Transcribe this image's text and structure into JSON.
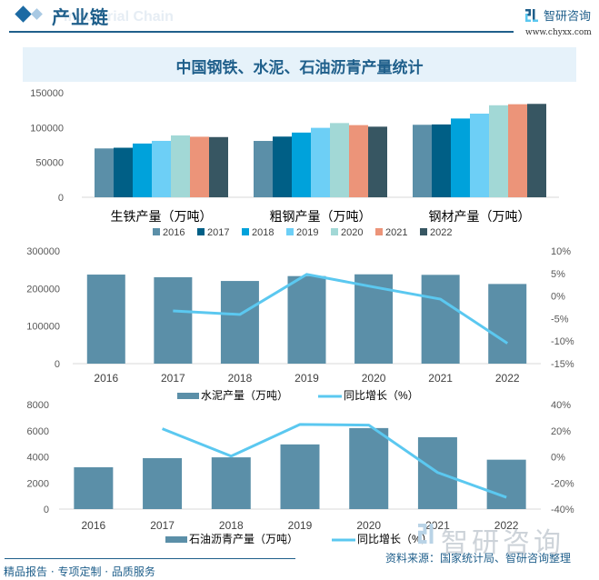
{
  "header": {
    "section_title": "产业链",
    "section_watermark": "Industrial Chain",
    "brand_name": "智研咨询",
    "brand_url": "www.chyxx.com"
  },
  "title": "中国钢铁、水泥、石油沥青产量统计",
  "footer": {
    "left": "精品报告 · 专项定制 · 品质服务",
    "right": "资料来源：国家统计局、智研咨询整理",
    "watermark": "智研咨询"
  },
  "colors": {
    "brand": "#1f5f8b",
    "bar_main": "#5b8fa8",
    "line": "#5bc8f0",
    "years": [
      "#5b8fa8",
      "#005f86",
      "#00a2db",
      "#6dcff6",
      "#a2d8d6",
      "#ec9479",
      "#375662"
    ]
  },
  "chart_data": [
    {
      "type": "bar",
      "title": "",
      "categories": [
        "生铁产量（万吨）",
        "粗钢产量（万吨）",
        "钢材产量（万吨）"
      ],
      "series": [
        {
          "name": "2016",
          "values": [
            70074,
            80837,
            104000
          ]
        },
        {
          "name": "2017",
          "values": [
            71076,
            87074,
            104500
          ]
        },
        {
          "name": "2018",
          "values": [
            77105,
            92826,
            113000
          ]
        },
        {
          "name": "2019",
          "values": [
            80937,
            99634,
            120000
          ]
        },
        {
          "name": "2020",
          "values": [
            88752,
            106477,
            132000
          ]
        },
        {
          "name": "2021",
          "values": [
            86857,
            103524,
            133500
          ]
        },
        {
          "name": "2022",
          "values": [
            86383,
            101300,
            134000
          ]
        }
      ],
      "ylim": [
        0,
        150000
      ],
      "yticks": [
        "0",
        "50000",
        "100000",
        "150000"
      ],
      "legend": "bottom",
      "grid": false
    },
    {
      "type": "bar+line",
      "categories": [
        "2016",
        "2017",
        "2018",
        "2019",
        "2020",
        "2021",
        "2022"
      ],
      "bar_series": {
        "name": "水泥产量（万吨）",
        "values": [
          237000,
          230000,
          220000,
          233000,
          237700,
          236300,
          212000
        ]
      },
      "line_series": {
        "name": "同比增长（%）",
        "values": [
          null,
          -3.3,
          -4.1,
          4.8,
          2.0,
          -0.7,
          -10.5
        ]
      },
      "ylim": [
        0,
        300000
      ],
      "yticks": [
        "0",
        "100000",
        "200000",
        "300000"
      ],
      "y2lim": [
        -15,
        10
      ],
      "y2ticks": [
        "-15%",
        "-10%",
        "-5%",
        "0%",
        "5%",
        "10%"
      ],
      "legend": "bottom"
    },
    {
      "type": "bar+line",
      "categories": [
        "2016",
        "2017",
        "2018",
        "2019",
        "2020",
        "2021",
        "2022"
      ],
      "bar_series": {
        "name": "石油沥青产量（万吨）",
        "values": [
          3200,
          3900,
          3960,
          4950,
          6200,
          5500,
          3780
        ]
      },
      "line_series": {
        "name": "同比增长（%）",
        "values": [
          null,
          21.5,
          0.5,
          24.8,
          24.3,
          -12.0,
          -31.0
        ]
      },
      "ylim": [
        0,
        8000
      ],
      "yticks": [
        "0",
        "2000",
        "4000",
        "6000",
        "8000"
      ],
      "y2lim": [
        -40,
        40
      ],
      "y2ticks": [
        "-40%",
        "-20%",
        "0%",
        "20%",
        "40%"
      ],
      "legend": "bottom"
    }
  ]
}
